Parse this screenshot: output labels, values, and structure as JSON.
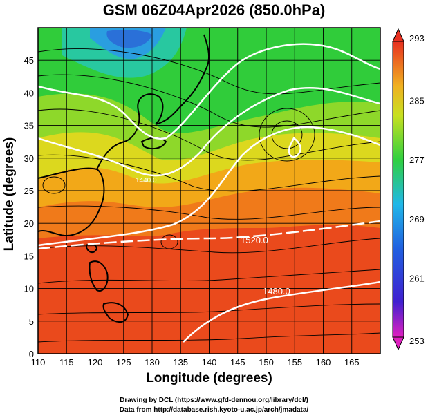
{
  "title": "GSM 06Z04Apr2026 (850.0hPa)",
  "xlabel": "Longitude (degrees)",
  "ylabel": "Latitude  (degrees)",
  "credit_line1": "Drawing by DCL (https://www.gfd-dennou.org/library/dcl/)",
  "credit_line2": "Data from http://database.rish.kyoto-u.ac.jp/arch/jmadata/",
  "x_ticks": [
    "110",
    "115",
    "120",
    "125",
    "130",
    "135",
    "140",
    "145",
    "150",
    "155",
    "160",
    "165"
  ],
  "y_ticks": [
    "0",
    "5",
    "10",
    "15",
    "20",
    "25",
    "30",
    "35",
    "40",
    "45"
  ],
  "colorbar_ticks": [
    "293",
    "285",
    "277",
    "269",
    "261",
    "253"
  ],
  "contour_labels": [
    "1520.0",
    "1480.0",
    "1440.0"
  ],
  "chart_data": {
    "type": "heatmap",
    "title": "GSM 06Z04Apr2026 (850.0hPa)",
    "xlabel": "Longitude (degrees)",
    "ylabel": "Latitude  (degrees)",
    "xlim": [
      110,
      170
    ],
    "ylim": [
      0,
      50
    ],
    "colorbar_range": [
      253,
      293
    ],
    "colorbar_ticks": [
      293,
      285,
      277,
      269,
      261,
      253
    ],
    "contour_levels": [
      1440.0,
      1480.0,
      1520.0
    ],
    "grid": true,
    "colors": {
      "warm": "#e83a1e",
      "mid": "#f0c020",
      "cool": "#2ad23c",
      "cold": "#2a8ae0",
      "min": "#e020c0",
      "contour": "#ffffff"
    }
  }
}
